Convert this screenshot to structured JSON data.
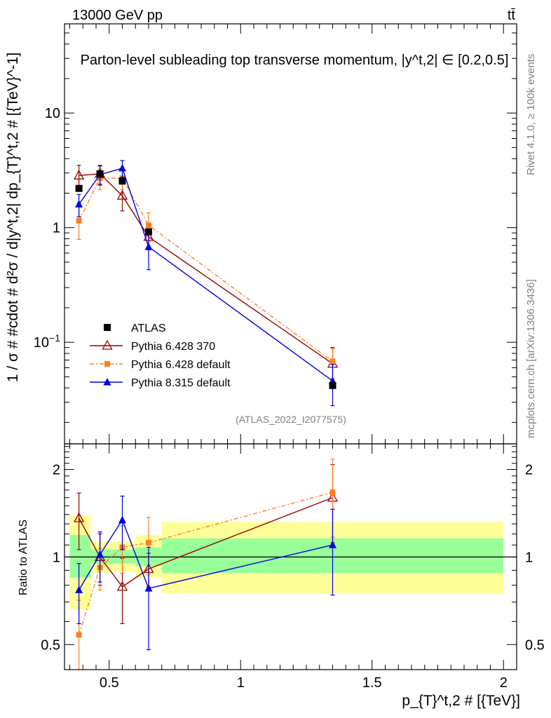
{
  "header": {
    "energy": "13000 GeV pp",
    "process": "tt̄",
    "title": "Parton-level subleading top transverse momentum, |y^t,2| ∈ [0.2,0.5]"
  },
  "side": {
    "rivet": "Rivet 4.1.0, ≥ 100k events",
    "mcplots": "mcplots.cern.ch [arXiv:1306.3436]"
  },
  "reference": "(ATLAS_2022_I2077575)",
  "axes": {
    "top_ylabel": "1 / σ # #cdot # d²σ / d|y^t,2| dp_{T}^t,2 # [{TeV}^-1]",
    "ratio_ylabel": "Ratio to ATLAS",
    "xlabel": "p_{T}^t,2 # [{TeV}]"
  },
  "colors": {
    "atlas": "#000000",
    "py6_370": "#990000",
    "py6_default": "#ff7f1f",
    "py8": "#0000e6",
    "band_inner": "#99ff99",
    "band_outer": "#ffff99"
  },
  "chart_data": {
    "type": "scatter",
    "xlim": [
      0.33,
      2.05
    ],
    "top": {
      "yscale": "log",
      "ylim": [
        0.013,
        60
      ],
      "xticks": [
        {
          "value": 0.5,
          "label": "0.5"
        },
        {
          "value": 1.0,
          "label": "1"
        },
        {
          "value": 1.5,
          "label": "1.5"
        },
        {
          "value": 2.0,
          "label": "2"
        }
      ],
      "yticks": [
        {
          "value": 0.1,
          "label": "10^−1"
        },
        {
          "value": 1,
          "label": "1"
        },
        {
          "value": 10,
          "label": "10"
        }
      ]
    },
    "ratio": {
      "yscale": "log",
      "ylim": [
        0.41,
        2.45
      ],
      "yticks": [
        {
          "value": 0.5,
          "label": "0.5"
        },
        {
          "value": 1,
          "label": "1"
        },
        {
          "value": 2,
          "label": "2"
        }
      ],
      "bands": [
        {
          "xlo": 0.35,
          "xhi": 0.43,
          "inner": [
            0.85,
            1.19
          ],
          "outer": [
            0.66,
            1.39
          ]
        },
        {
          "xlo": 0.43,
          "xhi": 0.5,
          "inner": [
            0.95,
            1.06
          ],
          "outer": [
            0.88,
            1.13
          ]
        },
        {
          "xlo": 0.5,
          "xhi": 0.6,
          "inner": [
            0.95,
            1.06
          ],
          "outer": [
            0.89,
            1.13
          ]
        },
        {
          "xlo": 0.6,
          "xhi": 0.7,
          "inner": [
            0.93,
            1.08
          ],
          "outer": [
            0.85,
            1.19
          ]
        },
        {
          "xlo": 0.7,
          "xhi": 2.0,
          "inner": [
            0.88,
            1.16
          ],
          "outer": [
            0.75,
            1.32
          ]
        }
      ]
    },
    "series": [
      {
        "name": "ATLAS",
        "key": "atlas",
        "marker": "square",
        "x": [
          0.385,
          0.465,
          0.55,
          0.65,
          1.35
        ],
        "y": [
          2.2,
          2.95,
          2.55,
          0.92,
          0.042
        ],
        "ratio": [
          1,
          1,
          1,
          1,
          1
        ],
        "ratio_err": [
          0,
          0,
          0,
          0,
          0
        ]
      },
      {
        "name": "Pythia 6.428 370",
        "key": "py6_370",
        "marker": "triangle-open",
        "x": [
          0.385,
          0.465,
          0.55,
          0.65,
          1.35
        ],
        "y": [
          2.85,
          2.95,
          1.9,
          0.83,
          0.065
        ],
        "err": [
          0.65,
          0.55,
          0.5,
          0.19,
          0.025
        ],
        "ratio": [
          1.36,
          1.0,
          0.79,
          0.91,
          1.6
        ],
        "ratio_err": [
          0.3,
          0.2,
          0.2,
          0.12,
          0.48
        ]
      },
      {
        "name": "Pythia 6.428 default",
        "key": "py6_default",
        "marker": "square-small",
        "x": [
          0.385,
          0.465,
          0.55,
          0.65,
          1.35
        ],
        "y": [
          1.15,
          2.7,
          2.7,
          1.05,
          0.068
        ],
        "err": [
          0.36,
          0.55,
          0.55,
          0.3,
          0.02
        ],
        "ratio": [
          0.54,
          0.92,
          1.08,
          1.12,
          1.67
        ],
        "ratio_err": [
          0.17,
          0.15,
          0.2,
          0.25,
          0.5
        ]
      },
      {
        "name": "Pythia 8.315 default",
        "key": "py8",
        "marker": "triangle",
        "x": [
          0.385,
          0.465,
          0.55,
          0.65,
          1.35
        ],
        "y": [
          1.6,
          2.9,
          3.3,
          0.68,
          0.046
        ],
        "err": [
          0.35,
          0.55,
          0.55,
          0.25,
          0.018
        ],
        "ratio": [
          0.77,
          1.02,
          1.34,
          0.78,
          1.1
        ],
        "ratio_err": [
          0.18,
          0.2,
          0.28,
          0.3,
          0.36
        ]
      }
    ],
    "legend": [
      {
        "key": "atlas",
        "label": "ATLAS"
      },
      {
        "key": "py6_370",
        "label": "Pythia 6.428 370"
      },
      {
        "key": "py6_default",
        "label": "Pythia 6.428 default"
      },
      {
        "key": "py8",
        "label": "Pythia 8.315 default"
      }
    ]
  }
}
